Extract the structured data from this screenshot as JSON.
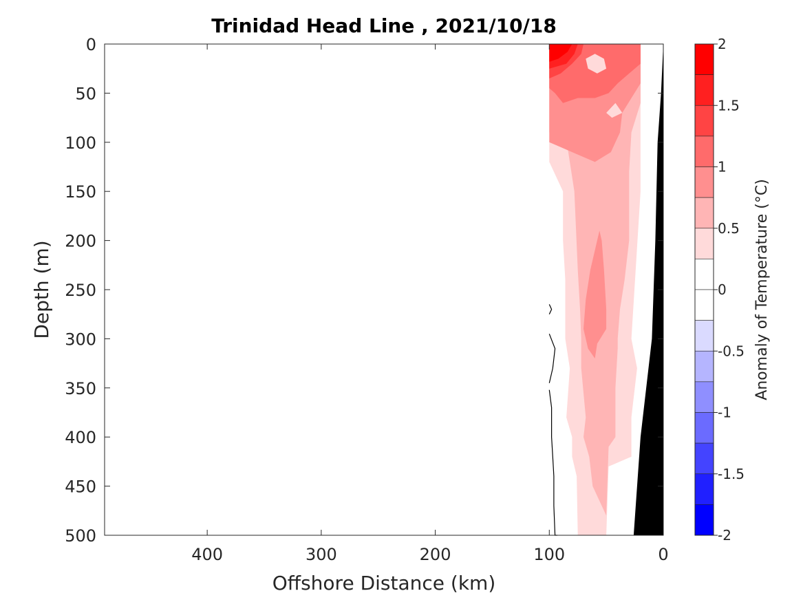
{
  "chart_data": {
    "type": "contour",
    "title": "Trinidad Head Line , 2021/10/18",
    "xlabel": "Offshore Distance (km)",
    "ylabel": "Depth (m)",
    "xlim": [
      490,
      0
    ],
    "ylim": [
      0,
      500
    ],
    "x_reversed": true,
    "y_reversed": true,
    "x_ticks": [
      400,
      300,
      200,
      100,
      0
    ],
    "x_tick_labels": [
      "400",
      "300",
      "200",
      "100",
      "0"
    ],
    "y_ticks": [
      0,
      50,
      100,
      150,
      200,
      250,
      300,
      350,
      400,
      450,
      500
    ],
    "y_tick_labels": [
      "0",
      "50",
      "100",
      "150",
      "200",
      "250",
      "300",
      "350",
      "400",
      "450",
      "500"
    ],
    "colorbar": {
      "label": "Anomaly of Temperature (°C)",
      "ticks": [
        2,
        1.5,
        1,
        0.5,
        0,
        -0.5,
        -1,
        -1.5,
        -2
      ],
      "tick_labels": [
        "2",
        "1.5",
        "1",
        "0.5",
        "0",
        "-0.5",
        "-1",
        "-1.5",
        "-2"
      ],
      "levels": [
        {
          "from": 1.75,
          "to": 2.0,
          "color": "#ff0000"
        },
        {
          "from": 1.5,
          "to": 1.75,
          "color": "#ff2020"
        },
        {
          "from": 1.25,
          "to": 1.5,
          "color": "#ff4444"
        },
        {
          "from": 1.0,
          "to": 1.25,
          "color": "#ff6b6b"
        },
        {
          "from": 0.75,
          "to": 1.0,
          "color": "#ff8f8f"
        },
        {
          "from": 0.5,
          "to": 0.75,
          "color": "#ffb5b5"
        },
        {
          "from": 0.25,
          "to": 0.5,
          "color": "#ffdada"
        },
        {
          "from": 0.0,
          "to": 0.25,
          "color": "#ffffff"
        },
        {
          "from": -0.25,
          "to": 0.0,
          "color": "#ffffff"
        },
        {
          "from": -0.5,
          "to": -0.25,
          "color": "#dadaff"
        },
        {
          "from": -0.75,
          "to": -0.5,
          "color": "#b5b5ff"
        },
        {
          "from": -1.0,
          "to": -0.75,
          "color": "#8f8fff"
        },
        {
          "from": -1.25,
          "to": -1.0,
          "color": "#6b6bff"
        },
        {
          "from": -1.5,
          "to": -1.25,
          "color": "#4444ff"
        },
        {
          "from": -1.75,
          "to": -1.5,
          "color": "#2020ff"
        },
        {
          "from": -2.0,
          "to": -1.75,
          "color": "#0000ff"
        }
      ]
    },
    "regions": [
      {
        "level": 0.25,
        "color": "#ffdada",
        "points": [
          [
            100,
            0
          ],
          [
            20,
            0
          ],
          [
            20,
            150
          ],
          [
            28,
            300
          ],
          [
            23,
            330
          ],
          [
            28,
            380
          ],
          [
            28,
            420
          ],
          [
            48,
            430
          ],
          [
            50,
            500
          ],
          [
            75,
            500
          ],
          [
            76,
            440
          ],
          [
            80,
            420
          ],
          [
            80,
            400
          ],
          [
            85,
            380
          ],
          [
            82,
            330
          ],
          [
            86,
            300
          ],
          [
            86,
            240
          ],
          [
            88,
            200
          ],
          [
            88,
            150
          ],
          [
            100,
            120
          ]
        ]
      },
      {
        "level": 0.5,
        "color": "#ffb5b5",
        "points": [
          [
            100,
            0
          ],
          [
            20,
            0
          ],
          [
            20,
            60
          ],
          [
            28,
            90
          ],
          [
            30,
            130
          ],
          [
            30,
            200
          ],
          [
            34,
            240
          ],
          [
            38,
            270
          ],
          [
            40,
            300
          ],
          [
            40,
            310
          ],
          [
            42,
            350
          ],
          [
            42,
            400
          ],
          [
            48,
            410
          ],
          [
            50,
            480
          ],
          [
            62,
            450
          ],
          [
            65,
            420
          ],
          [
            70,
            400
          ],
          [
            68,
            380
          ],
          [
            72,
            330
          ],
          [
            72,
            300
          ],
          [
            73,
            270
          ],
          [
            75,
            230
          ],
          [
            78,
            150
          ],
          [
            82,
            120
          ],
          [
            86,
            90
          ],
          [
            100,
            90
          ]
        ]
      },
      {
        "level": 0.75,
        "color": "#ff8f8f",
        "points": [
          [
            100,
            0
          ],
          [
            20,
            0
          ],
          [
            20,
            40
          ],
          [
            36,
            70
          ],
          [
            38,
            90
          ],
          [
            42,
            100
          ],
          [
            46,
            110
          ],
          [
            60,
            120
          ],
          [
            80,
            110
          ],
          [
            90,
            105
          ],
          [
            100,
            100
          ]
        ]
      },
      {
        "level": 0.75,
        "color": "#ff8f8f",
        "points": [
          [
            56,
            190
          ],
          [
            64,
            230
          ],
          [
            68,
            260
          ],
          [
            70,
            290
          ],
          [
            66,
            310
          ],
          [
            60,
            320
          ],
          [
            58,
            305
          ],
          [
            50,
            290
          ],
          [
            50,
            270
          ],
          [
            52,
            230
          ],
          [
            54,
            200
          ]
        ]
      },
      {
        "level": 1.0,
        "color": "#ff6b6b",
        "points": [
          [
            100,
            0
          ],
          [
            20,
            0
          ],
          [
            20,
            20
          ],
          [
            30,
            30
          ],
          [
            40,
            40
          ],
          [
            48,
            50
          ],
          [
            60,
            55
          ],
          [
            75,
            55
          ],
          [
            88,
            60
          ],
          [
            95,
            50
          ],
          [
            100,
            45
          ]
        ]
      },
      {
        "level": 1.25,
        "color": "#ff4444",
        "points": [
          [
            100,
            0
          ],
          [
            70,
            0
          ],
          [
            72,
            10
          ],
          [
            80,
            20
          ],
          [
            90,
            30
          ],
          [
            100,
            35
          ]
        ]
      },
      {
        "level": 1.5,
        "color": "#ff2020",
        "points": [
          [
            100,
            0
          ],
          [
            75,
            0
          ],
          [
            78,
            10
          ],
          [
            85,
            20
          ],
          [
            100,
            25
          ]
        ]
      },
      {
        "level": 1.75,
        "color": "#ff0000",
        "points": [
          [
            100,
            0
          ],
          [
            80,
            0
          ],
          [
            84,
            8
          ],
          [
            92,
            15
          ],
          [
            100,
            18
          ]
        ]
      },
      {
        "level": 0.5,
        "color": "#ffdada",
        "points": [
          [
            60,
            10
          ],
          [
            52,
            15
          ],
          [
            50,
            25
          ],
          [
            58,
            30
          ],
          [
            66,
            25
          ],
          [
            68,
            15
          ]
        ]
      },
      {
        "level": 0.5,
        "color": "#ffdada",
        "points": [
          [
            42,
            60
          ],
          [
            36,
            70
          ],
          [
            45,
            75
          ],
          [
            50,
            70
          ]
        ]
      }
    ],
    "zero_contours": [
      {
        "points": [
          [
            100,
            265
          ],
          [
            98,
            270
          ],
          [
            100,
            275
          ]
        ]
      },
      {
        "points": [
          [
            100,
            295
          ],
          [
            95,
            310
          ],
          [
            97,
            330
          ],
          [
            100,
            345
          ]
        ]
      },
      {
        "points": [
          [
            100,
            352
          ],
          [
            98,
            370
          ],
          [
            98,
            400
          ],
          [
            97,
            420
          ],
          [
            96,
            440
          ],
          [
            96,
            470
          ],
          [
            95,
            500
          ],
          [
            93,
            500
          ]
        ]
      }
    ],
    "bathymetry": {
      "color": "#000000",
      "points": [
        [
          0,
          0
        ],
        [
          2,
          50
        ],
        [
          5,
          100
        ],
        [
          7,
          200
        ],
        [
          10,
          300
        ],
        [
          20,
          400
        ],
        [
          26,
          500
        ],
        [
          0,
          500
        ]
      ]
    }
  }
}
